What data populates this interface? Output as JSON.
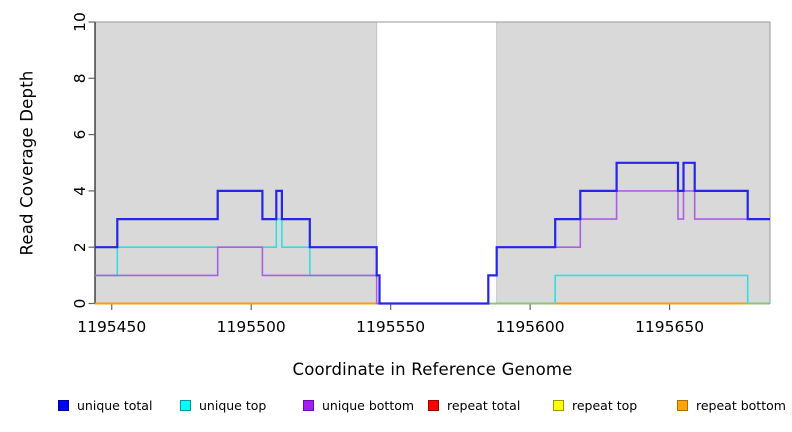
{
  "chart_data": {
    "type": "line",
    "variant": "step",
    "title": "",
    "xlabel": "Coordinate in Reference Genome",
    "ylabel": "Read Coverage Depth",
    "xlim": [
      1195444,
      1195686
    ],
    "ylim": [
      0,
      10
    ],
    "x_ticks": [
      1195450,
      1195500,
      1195550,
      1195600,
      1195650
    ],
    "y_ticks": [
      0,
      2,
      4,
      6,
      8,
      10
    ],
    "grid": false,
    "legend_position": "bottom",
    "background_color": "#FFFFFF",
    "shaded_region_color": "#D9D9D9",
    "shaded_regions": [
      [
        1195444,
        1195545
      ],
      [
        1195588,
        1195686
      ]
    ],
    "series": [
      {
        "name": "unique total",
        "color": "#2626E8",
        "legend_color": "#0000FF",
        "legend_border": "#000099",
        "line_width": 2.2,
        "steps": [
          [
            1195444,
            2
          ],
          [
            1195452,
            3
          ],
          [
            1195488,
            4
          ],
          [
            1195504,
            3
          ],
          [
            1195509,
            4
          ],
          [
            1195511,
            3
          ],
          [
            1195521,
            2
          ],
          [
            1195545,
            1
          ],
          [
            1195546,
            0
          ],
          [
            1195585,
            1
          ],
          [
            1195588,
            2
          ],
          [
            1195609,
            3
          ],
          [
            1195618,
            4
          ],
          [
            1195631,
            5
          ],
          [
            1195653,
            4
          ],
          [
            1195655,
            5
          ],
          [
            1195659,
            4
          ],
          [
            1195678,
            3
          ]
        ]
      },
      {
        "name": "unique top",
        "color": "#35DEDC",
        "legend_color": "#00FFFF",
        "legend_border": "#009999",
        "line_width": 1.6,
        "steps": [
          [
            1195444,
            1
          ],
          [
            1195452,
            2
          ],
          [
            1195509,
            3
          ],
          [
            1195511,
            2
          ],
          [
            1195521,
            1
          ],
          [
            1195546,
            0
          ],
          [
            1195609,
            1
          ],
          [
            1195678,
            0
          ]
        ]
      },
      {
        "name": "unique bottom",
        "color": "#AC5FE3",
        "legend_color": "#A020F0",
        "legend_border": "#6A0DAD",
        "line_width": 1.6,
        "steps": [
          [
            1195444,
            1
          ],
          [
            1195488,
            2
          ],
          [
            1195504,
            1
          ],
          [
            1195545,
            0
          ],
          [
            1195585,
            1
          ],
          [
            1195588,
            2
          ],
          [
            1195618,
            3
          ],
          [
            1195631,
            4
          ],
          [
            1195653,
            3
          ],
          [
            1195655,
            4
          ],
          [
            1195659,
            3
          ]
        ]
      },
      {
        "name": "repeat total",
        "color": "#E01010",
        "legend_color": "#FF0000",
        "legend_border": "#990000",
        "line_width": 1.5,
        "steps": [
          [
            1195444,
            0
          ]
        ]
      },
      {
        "name": "repeat top",
        "color": "#E6E600",
        "legend_color": "#FFFF00",
        "legend_border": "#999900",
        "line_width": 1.5,
        "steps": [
          [
            1195444,
            0
          ]
        ]
      },
      {
        "name": "repeat bottom",
        "color": "#FF9D00",
        "legend_color": "#FFA500",
        "legend_border": "#B36B00",
        "line_width": 1.8,
        "steps": [
          [
            1195444,
            0
          ]
        ]
      }
    ],
    "draw_order": [
      "repeat total",
      "repeat top",
      "repeat bottom",
      "unique top",
      "unique bottom",
      "unique total"
    ]
  }
}
